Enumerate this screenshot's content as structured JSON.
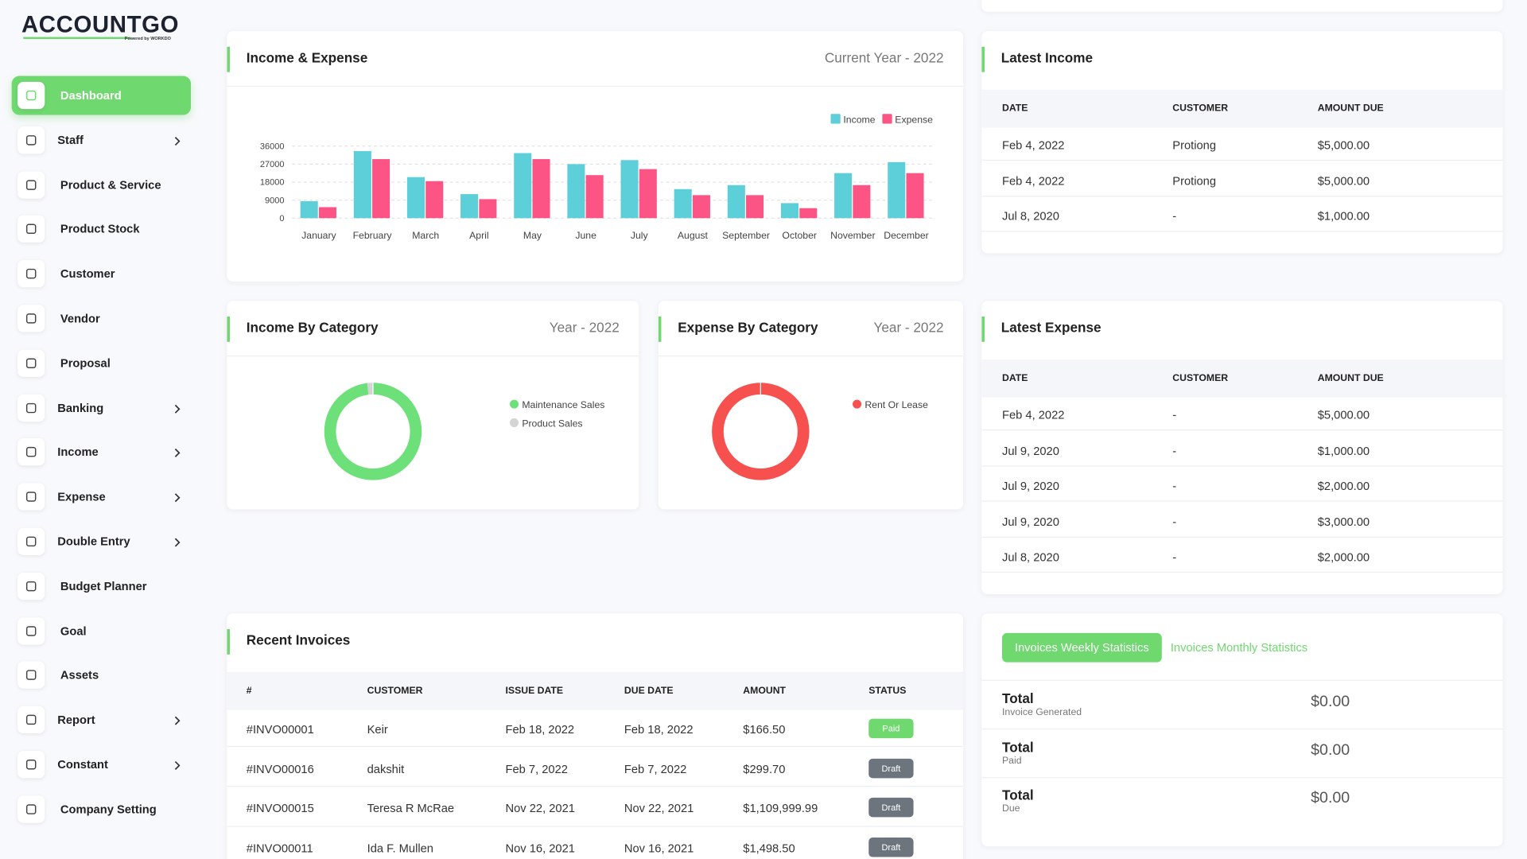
{
  "logo": {
    "name": "ACCOUNTGO",
    "tagline": "Powered by WORKDO"
  },
  "sidebar": {
    "active": 0,
    "items": [
      {
        "label": "Dashboard",
        "submenu": false
      },
      {
        "label": "Staff",
        "submenu": true
      },
      {
        "label": "Product & Service",
        "submenu": false
      },
      {
        "label": "Product Stock",
        "submenu": false
      },
      {
        "label": "Customer",
        "submenu": false
      },
      {
        "label": "Vendor",
        "submenu": false
      },
      {
        "label": "Proposal",
        "submenu": false
      },
      {
        "label": "Banking",
        "submenu": true
      },
      {
        "label": "Income",
        "submenu": true
      },
      {
        "label": "Expense",
        "submenu": true
      },
      {
        "label": "Double Entry",
        "submenu": true
      },
      {
        "label": "Budget Planner",
        "submenu": false
      },
      {
        "label": "Goal",
        "submenu": false
      },
      {
        "label": "Assets",
        "submenu": false
      },
      {
        "label": "Report",
        "submenu": true
      },
      {
        "label": "Constant",
        "submenu": true
      },
      {
        "label": "Company Setting",
        "submenu": false
      }
    ]
  },
  "chart_data": [
    {
      "type": "bar",
      "title": "Income & Expense",
      "subtitle": "Current Year - 2022",
      "categories": [
        "January",
        "February",
        "March",
        "April",
        "May",
        "June",
        "July",
        "August",
        "September",
        "October",
        "November",
        "December"
      ],
      "series": [
        {
          "name": "Income",
          "color": "#5ccfd9",
          "values": [
            8500,
            33500,
            20500,
            12000,
            32500,
            27000,
            29000,
            14500,
            16500,
            7500,
            22500,
            28000
          ]
        },
        {
          "name": "Expense",
          "color": "#fc5585",
          "values": [
            5500,
            29500,
            18500,
            9500,
            29500,
            21500,
            24500,
            11500,
            11500,
            5000,
            16500,
            22500
          ]
        }
      ],
      "ylim": [
        0,
        36000
      ],
      "yticks": [
        0,
        9000,
        18000,
        27000,
        36000
      ],
      "grid": true,
      "legend": "top-right"
    },
    {
      "type": "pie",
      "donut": true,
      "title": "Income By Category",
      "subtitle": "Year - 2022",
      "categories": [
        "Maintenance Sales",
        "Product Sales"
      ],
      "values": [
        98,
        2
      ],
      "colors": [
        "#6ee07a",
        "#d4d4d4"
      ]
    },
    {
      "type": "pie",
      "donut": true,
      "title": "Expense By Category",
      "subtitle": "Year - 2022",
      "categories": [
        "Rent Or Lease"
      ],
      "values": [
        100
      ],
      "colors": [
        "#f7514f"
      ]
    }
  ],
  "latest_income": {
    "title": "Latest Income",
    "columns": [
      "DATE",
      "CUSTOMER",
      "AMOUNT DUE"
    ],
    "rows": [
      [
        "Feb 4, 2022",
        "Protiong",
        "$5,000.00"
      ],
      [
        "Feb 4, 2022",
        "Protiong",
        "$5,000.00"
      ],
      [
        "Jul 8, 2020",
        "-",
        "$1,000.00"
      ]
    ]
  },
  "latest_expense": {
    "title": "Latest Expense",
    "columns": [
      "DATE",
      "CUSTOMER",
      "AMOUNT DUE"
    ],
    "rows": [
      [
        "Feb 4, 2022",
        "-",
        "$5,000.00"
      ],
      [
        "Jul 9, 2020",
        "-",
        "$1,000.00"
      ],
      [
        "Jul 9, 2020",
        "-",
        "$2,000.00"
      ],
      [
        "Jul 9, 2020",
        "-",
        "$3,000.00"
      ],
      [
        "Jul 8, 2020",
        "-",
        "$2,000.00"
      ]
    ]
  },
  "recent_invoices": {
    "title": "Recent Invoices",
    "columns": [
      "#",
      "CUSTOMER",
      "ISSUE DATE",
      "DUE DATE",
      "AMOUNT",
      "STATUS"
    ],
    "rows": [
      [
        "#INVO00001",
        "Keir",
        "Feb 18, 2022",
        "Feb 18, 2022",
        "$166.50",
        "Paid"
      ],
      [
        "#INVO00016",
        "dakshit",
        "Feb 7, 2022",
        "Feb 7, 2022",
        "$299.70",
        "Draft"
      ],
      [
        "#INVO00015",
        "Teresa R McRae",
        "Nov 22, 2021",
        "Nov 22, 2021",
        "$1,109,999.99",
        "Draft"
      ],
      [
        "#INVO00011",
        "Ida F. Mullen",
        "Nov 16, 2021",
        "Nov 16, 2021",
        "$1,498.50",
        "Draft"
      ]
    ],
    "status_colors": [
      "#6fd86f",
      "#6c757d",
      "#6c757d",
      "#6c757d"
    ]
  },
  "invoice_stats": {
    "active_tab": 0,
    "tabs": [
      "Invoices Weekly Statistics",
      "Invoices Monthly Statistics"
    ],
    "rows": [
      {
        "label": "Total",
        "sublabel": "Invoice Generated",
        "value": "$0.00"
      },
      {
        "label": "Total",
        "sublabel": "Paid",
        "value": "$0.00"
      },
      {
        "label": "Total",
        "sublabel": "Due",
        "value": "$0.00"
      }
    ]
  }
}
